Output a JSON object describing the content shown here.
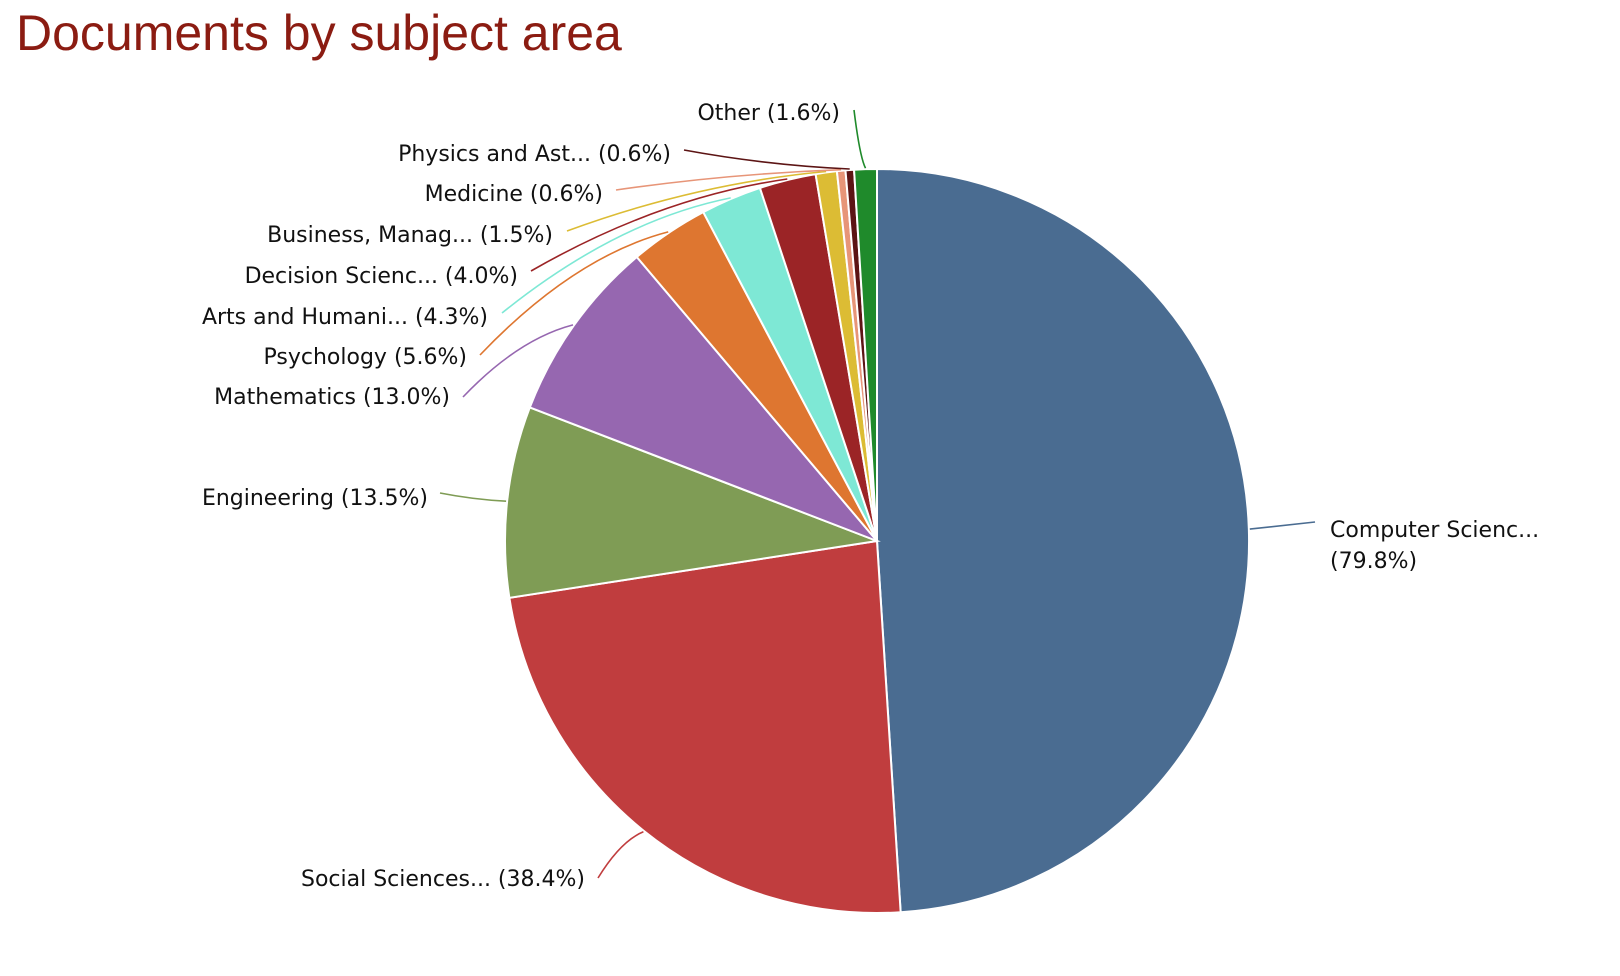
{
  "title": "Documents by subject area",
  "chart_data": {
    "type": "pie",
    "title": "Documents by subject area",
    "start_angle_deg": 0,
    "direction": "clockwise",
    "slices": [
      {
        "label": "Computer Scienc...",
        "pct_text": "(79.8%)",
        "value": 79.8,
        "color": "#4a6c91"
      },
      {
        "label": "Social Sciences...",
        "pct_text": "(38.4%)",
        "value": 38.4,
        "color": "#c03d3e"
      },
      {
        "label": "Engineering",
        "pct_text": "(13.5%)",
        "value": 13.5,
        "color": "#7f9c55"
      },
      {
        "label": "Mathematics",
        "pct_text": "(13.0%)",
        "value": 13.0,
        "color": "#9667b0"
      },
      {
        "label": "Psychology",
        "pct_text": "(5.6%)",
        "value": 5.6,
        "color": "#de7630"
      },
      {
        "label": "Arts and Humani...",
        "pct_text": "(4.3%)",
        "value": 4.3,
        "color": "#7ee8d5"
      },
      {
        "label": "Decision Scienc...",
        "pct_text": "(4.0%)",
        "value": 4.0,
        "color": "#9b2426"
      },
      {
        "label": "Business, Manag...",
        "pct_text": "(1.5%)",
        "value": 1.5,
        "color": "#dcbc34"
      },
      {
        "label": "Medicine",
        "pct_text": "(0.6%)",
        "value": 0.6,
        "color": "#e79578"
      },
      {
        "label": "Physics and Ast...",
        "pct_text": "(0.6%)",
        "value": 0.6,
        "color": "#5c1414"
      },
      {
        "label": "Other",
        "pct_text": "(1.6%)",
        "value": 1.6,
        "color": "#1f8a2b"
      }
    ]
  }
}
